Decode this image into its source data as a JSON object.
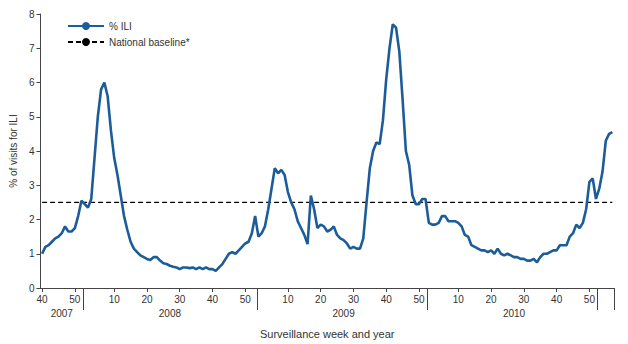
{
  "chart_data": {
    "type": "line",
    "x_label": "Surveillance week and year",
    "y_label": "% of visits for ILI",
    "categories": [
      "40",
      null,
      null,
      null,
      null,
      null,
      null,
      null,
      null,
      null,
      "50",
      null,
      null,
      null,
      null,
      null,
      null,
      null,
      null,
      null,
      null,
      null,
      "10",
      null,
      null,
      null,
      null,
      null,
      null,
      null,
      null,
      null,
      "20",
      null,
      null,
      null,
      null,
      null,
      null,
      null,
      null,
      null,
      "30",
      null,
      null,
      null,
      null,
      null,
      null,
      null,
      null,
      null,
      "40",
      null,
      null,
      null,
      null,
      null,
      null,
      null,
      null,
      null,
      "50",
      null,
      null,
      null,
      null,
      null,
      null,
      null,
      null,
      null,
      null,
      null,
      null,
      "10",
      null,
      null,
      null,
      null,
      null,
      null,
      null,
      null,
      null,
      "20",
      null,
      null,
      null,
      null,
      null,
      null,
      null,
      null,
      null,
      "30",
      null,
      null,
      null,
      null,
      null,
      null,
      null,
      null,
      null,
      "40",
      null,
      null,
      null,
      null,
      null,
      null,
      null,
      null,
      null,
      "50",
      null,
      null,
      null,
      null,
      null,
      null,
      null,
      null,
      null,
      null,
      null,
      "10",
      null,
      null,
      null,
      null,
      null,
      null,
      null,
      null,
      null,
      "20",
      null,
      null,
      null,
      null,
      null,
      null,
      null,
      null,
      null,
      "30",
      null,
      null,
      null,
      null,
      null,
      null,
      null,
      null,
      null,
      "40",
      null,
      null,
      null,
      null,
      null,
      null,
      null,
      null,
      null,
      "50",
      null,
      null,
      null,
      null,
      null,
      null,
      null
    ],
    "x_groups": [
      {
        "label": "2007",
        "size": 13
      },
      {
        "label": "2008",
        "size": 53
      },
      {
        "label": "2009",
        "size": 52
      },
      {
        "label": "2010",
        "size": 52
      },
      {
        "label": null,
        "size": 5
      }
    ],
    "series": [
      {
        "name": "% ILI",
        "color": "#1c5c99",
        "line_style": "solid",
        "values": [
          1.0,
          1.2,
          1.25,
          1.35,
          1.45,
          1.5,
          1.6,
          1.8,
          1.65,
          1.65,
          1.75,
          2.1,
          2.55,
          2.45,
          2.35,
          2.6,
          3.8,
          5.0,
          5.8,
          6.0,
          5.6,
          4.6,
          3.8,
          3.3,
          2.7,
          2.1,
          1.7,
          1.35,
          1.15,
          1.05,
          0.95,
          0.9,
          0.85,
          0.82,
          0.9,
          0.9,
          0.8,
          0.72,
          0.7,
          0.65,
          0.62,
          0.6,
          0.55,
          0.6,
          0.6,
          0.58,
          0.6,
          0.55,
          0.6,
          0.55,
          0.6,
          0.55,
          0.55,
          0.5,
          0.6,
          0.7,
          0.85,
          1.0,
          1.05,
          1.0,
          1.1,
          1.2,
          1.3,
          1.35,
          1.6,
          2.1,
          1.5,
          1.6,
          1.8,
          2.3,
          2.9,
          3.5,
          3.35,
          3.45,
          3.3,
          2.8,
          2.5,
          2.3,
          1.95,
          1.75,
          1.55,
          1.28,
          2.7,
          2.3,
          1.75,
          1.85,
          1.8,
          1.65,
          1.7,
          1.8,
          1.55,
          1.45,
          1.4,
          1.3,
          1.15,
          1.2,
          1.15,
          1.15,
          1.45,
          2.5,
          3.5,
          4.0,
          4.25,
          4.2,
          4.9,
          6.1,
          7.0,
          7.7,
          7.6,
          6.9,
          5.5,
          4.0,
          3.6,
          2.7,
          2.45,
          2.45,
          2.6,
          2.6,
          1.9,
          1.85,
          1.85,
          1.9,
          2.1,
          2.1,
          1.95,
          1.95,
          1.95,
          1.9,
          1.8,
          1.55,
          1.5,
          1.25,
          1.2,
          1.15,
          1.1,
          1.1,
          1.05,
          1.1,
          1.0,
          1.15,
          1.0,
          0.95,
          1.0,
          0.95,
          0.9,
          0.9,
          0.85,
          0.85,
          0.8,
          0.8,
          0.85,
          0.75,
          0.9,
          1.0,
          1.0,
          1.05,
          1.1,
          1.1,
          1.25,
          1.25,
          1.25,
          1.5,
          1.6,
          1.85,
          1.75,
          1.9,
          2.3,
          3.1,
          3.2,
          2.6,
          2.9,
          3.4,
          4.3,
          4.5,
          4.55
        ]
      },
      {
        "name": "National baseline*",
        "color": "#000000",
        "line_style": "dashed",
        "values": [
          2.5,
          2.5,
          2.5,
          2.5,
          2.5,
          2.5,
          2.5,
          2.5,
          2.5,
          2.5,
          2.5,
          2.5,
          2.5,
          2.5,
          2.5,
          2.5,
          2.5,
          2.5,
          2.5,
          2.5,
          2.5,
          2.5,
          2.5,
          2.5,
          2.5,
          2.5,
          2.5,
          2.5,
          2.5,
          2.5,
          2.5,
          2.5,
          2.5,
          2.5,
          2.5,
          2.5,
          2.5,
          2.5,
          2.5,
          2.5,
          2.5,
          2.5,
          2.5,
          2.5,
          2.5,
          2.5,
          2.5,
          2.5,
          2.5,
          2.5,
          2.5,
          2.5,
          2.5,
          2.5,
          2.5,
          2.5,
          2.5,
          2.5,
          2.5,
          2.5,
          2.5,
          2.5,
          2.5,
          2.5,
          2.5,
          2.5,
          2.5,
          2.5,
          2.5,
          2.5,
          2.5,
          2.5,
          2.5,
          2.5,
          2.5,
          2.5,
          2.5,
          2.5,
          2.5,
          2.5,
          2.5,
          2.5,
          2.5,
          2.5,
          2.5,
          2.5,
          2.5,
          2.5,
          2.5,
          2.5,
          2.5,
          2.5,
          2.5,
          2.5,
          2.5,
          2.5,
          2.5,
          2.5,
          2.5,
          2.5,
          2.5,
          2.5,
          2.5,
          2.5,
          2.5,
          2.5,
          2.5,
          2.5,
          2.5,
          2.5,
          2.5,
          2.5,
          2.5,
          2.5,
          2.5,
          2.5,
          2.5,
          2.5,
          2.5,
          2.5,
          2.5,
          2.5,
          2.5,
          2.5,
          2.5,
          2.5,
          2.5,
          2.5,
          2.5,
          2.5,
          2.5,
          2.5,
          2.5,
          2.5,
          2.5,
          2.5,
          2.5,
          2.5,
          2.5,
          2.5,
          2.5,
          2.5,
          2.5,
          2.5,
          2.5,
          2.5,
          2.5,
          2.5,
          2.5,
          2.5,
          2.5,
          2.5,
          2.5,
          2.5,
          2.5,
          2.5,
          2.5,
          2.5,
          2.5,
          2.5,
          2.5,
          2.5,
          2.5,
          2.5,
          2.5,
          2.5,
          2.5,
          2.5,
          2.5,
          2.5,
          2.5,
          2.5,
          2.5,
          2.5,
          2.5
        ]
      }
    ],
    "ylim": [
      0,
      8
    ],
    "yticks": [
      0,
      1,
      2,
      3,
      4,
      5,
      6,
      7,
      8
    ],
    "legend": "upper left",
    "grid": false
  }
}
